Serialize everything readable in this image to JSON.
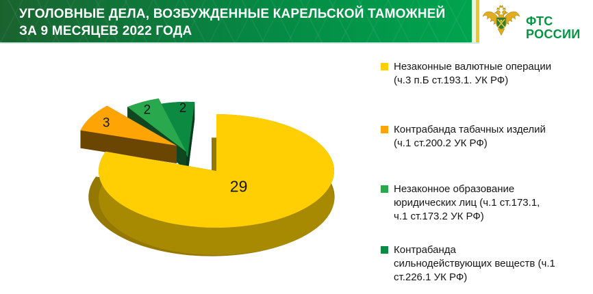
{
  "header": {
    "title_line1": "УГОЛОВНЫЕ ДЕЛА, ВОЗБУЖДЕННЫЕ КАРЕЛЬСКОЙ ТАМОЖНЕЙ",
    "title_line2": "ЗА 9 МЕСЯЦЕВ 2022 ГОДА",
    "logo": {
      "line1": "ФТС",
      "line2": "РОССИИ",
      "emblem": "fts-customs-double-eagle-with-green-shield"
    }
  },
  "chart_data": {
    "type": "pie",
    "style": "3d-exploded",
    "title": "УГОЛОВНЫЕ ДЕЛА, ВОЗБУЖДЕННЫЕ КАРЕЛЬСКОЙ ТАМОЖНЕЙ ЗА 9 МЕСЯЦЕВ 2022 ГОДА",
    "legend_position": "right",
    "data_labels": "values",
    "slices": [
      {
        "label": "Незаконные валютные операции (ч.3 п.Б ст.193.1. УК РФ)",
        "value": 29,
        "color": "#FFCF03"
      },
      {
        "label": "Контрабанда табачных изделий (ч.1 ст.200.2 УК РФ)",
        "value": 3,
        "color": "#FFA405"
      },
      {
        "label": "Незаконное образование юридических лиц (ч.1 ст.173.1, ч.1 ст.173.2 УК РФ)",
        "value": 2,
        "color": "#29A84D"
      },
      {
        "label": "Контрабанда сильнодействующих веществ (ч.1 ст.226.1 УК РФ)",
        "value": 2,
        "color": "#0C8A42"
      }
    ]
  },
  "legend": {
    "items": [
      {
        "text": "Незаконные валютные операции\n(ч.3 п.Б ст.193.1. УК РФ)"
      },
      {
        "text": "Контрабанда табачных изделий\n(ч.1 ст.200.2 УК РФ)"
      },
      {
        "text": "Незаконное образование\nюридических лиц (ч.1 ст.173.1,\nч.1 ст.173.2 УК РФ)"
      },
      {
        "text": "Контрабанда\nсильнодействующих веществ (ч.1\nст.226.1 УК РФ)"
      }
    ]
  }
}
